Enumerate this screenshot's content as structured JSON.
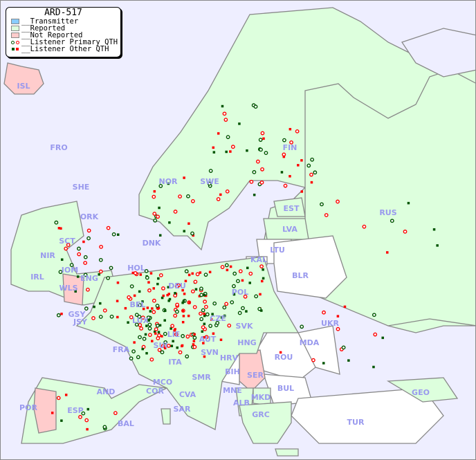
{
  "map": {
    "title": "ARD-517",
    "legend": [
      {
        "label": "__Transmitter",
        "color": "#88ccff",
        "kind": "swatch"
      },
      {
        "label": "__Reported",
        "color": "#ddffdd",
        "kind": "swatch"
      },
      {
        "label": "__Not Reported",
        "color": "#ffcccc",
        "kind": "swatch"
      },
      {
        "label": "__Listener Primary QTH",
        "kind": "circles"
      },
      {
        "label": "__Listener Other QTH",
        "kind": "squares"
      }
    ],
    "colors": {
      "sea": "#eeeeff",
      "reported": "#ddffdd",
      "not_reported": "#ffcccc",
      "no_data": "#ffffff",
      "border": "#888888",
      "label": "#9999ee",
      "marker_red": "#ff0000",
      "marker_green": "#005500"
    },
    "countries": [
      "ISL",
      "FRO",
      "SHE",
      "ORK",
      "NOR",
      "SWE",
      "FIN",
      "EST",
      "LVA",
      "LTU",
      "KAL",
      "RUS",
      "BLR",
      "UKR",
      "MDA",
      "ROU",
      "BUL",
      "TUR",
      "GEO",
      "SER",
      "MKD",
      "ALB",
      "GRC",
      "MNE",
      "BIH",
      "HRV",
      "SVN",
      "HNG",
      "SVK",
      "CZE",
      "AUT",
      "POL",
      "DEU",
      "DNK",
      "HOL",
      "BEL",
      "LUX",
      "LIE",
      "SUI",
      "FRA",
      "ITA",
      "SMR",
      "MCO",
      "COR",
      "CVA",
      "SAR",
      "AND",
      "ESP",
      "POR",
      "BAL",
      "IRL",
      "NIR",
      "SCT",
      "IOM",
      "ENG",
      "WLS",
      "GSY",
      "JSY"
    ]
  }
}
